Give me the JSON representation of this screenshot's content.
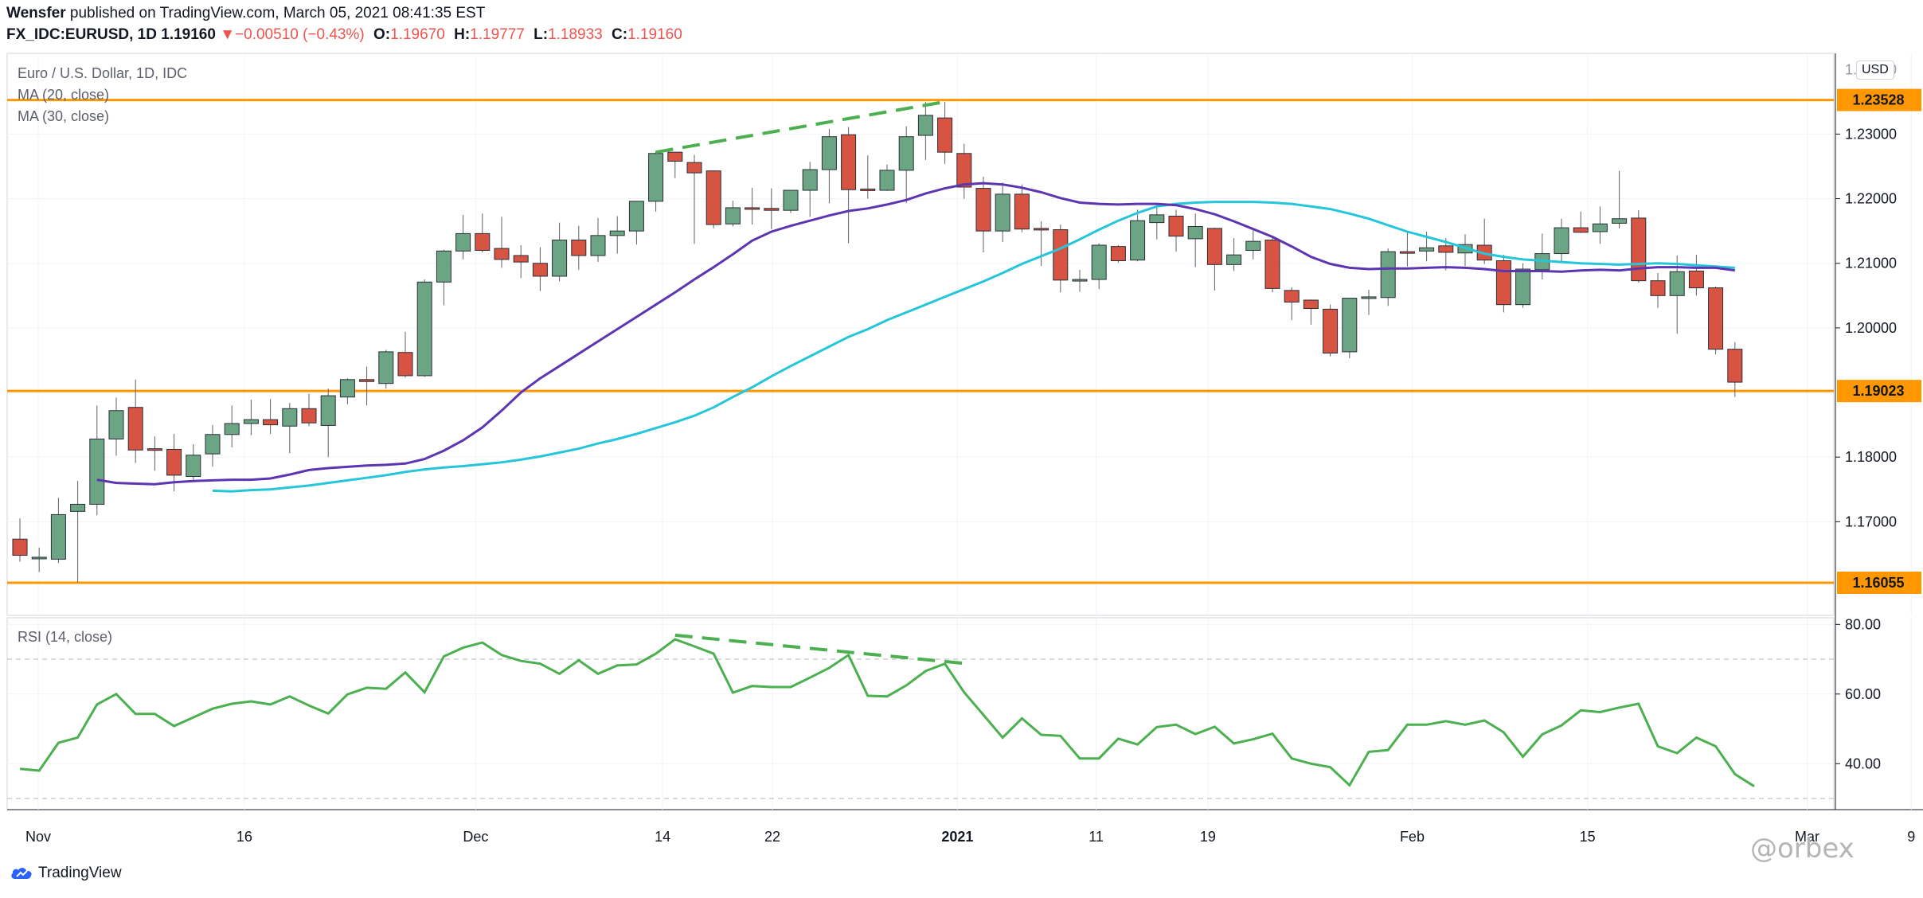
{
  "header": {
    "author": "Wensfer",
    "published_text": "published on TradingView.com, March 05, 2021 08:41:35 EST",
    "symbol": "FX_IDC:EURUSD, 1D",
    "last": "1.19160",
    "change_arrow": "▼",
    "change": "−0.00510 (−0.43%)",
    "o_label": "O:",
    "o_value": "1.19670",
    "h_label": "H:",
    "h_value": "1.19777",
    "l_label": "L:",
    "l_value": "1.18933",
    "c_label": "C:",
    "c_value": "1.19160"
  },
  "legend": {
    "title": "Euro / U.S. Dollar, 1D, IDC",
    "ma20": "MA (20, close)",
    "ma30": "MA (30, close)",
    "rsi": "RSI (14, close)"
  },
  "currency_badge": "USD",
  "footer": {
    "brand": "TradingView",
    "watermark": "@orbex"
  },
  "colors": {
    "up": "#6ba583",
    "down": "#d75442",
    "wick": "#5d606b",
    "ma20": "#5e35b1",
    "ma30": "#26c6da",
    "level": "#ff9800",
    "rsi": "#4caf50",
    "trend_dash": "#4caf50",
    "grid": "#f0f3fa",
    "text_red": "#ef5350"
  },
  "chart_data": [
    {
      "type": "candlestick",
      "title": "Euro / U.S. Dollar, 1D, IDC",
      "x_labels": [
        "Nov",
        "16",
        "Dec",
        "14",
        "22",
        "2021",
        "11",
        "19",
        "Feb",
        "15",
        "Mar",
        "9"
      ],
      "y_ticks": [
        "1.23000",
        "1.22000",
        "1.21000",
        "1.20000",
        "1.18000",
        "1.17000"
      ],
      "ylim": [
        1.1555,
        1.2425
      ],
      "levels": [
        {
          "value": 1.23528,
          "label": "1.23528"
        },
        {
          "value": 1.19023,
          "label": "1.19023"
        },
        {
          "value": 1.16055,
          "label": "1.16055"
        }
      ],
      "candles": [
        {
          "o": 1.1673,
          "h": 1.1705,
          "l": 1.1638,
          "c": 1.1648
        },
        {
          "o": 1.1643,
          "h": 1.166,
          "l": 1.1622,
          "c": 1.1645
        },
        {
          "o": 1.1642,
          "h": 1.1737,
          "l": 1.1636,
          "c": 1.1711
        },
        {
          "o": 1.1716,
          "h": 1.1763,
          "l": 1.1606,
          "c": 1.1727
        },
        {
          "o": 1.1727,
          "h": 1.188,
          "l": 1.171,
          "c": 1.1828
        },
        {
          "o": 1.1828,
          "h": 1.1892,
          "l": 1.1802,
          "c": 1.1872
        },
        {
          "o": 1.1877,
          "h": 1.192,
          "l": 1.1791,
          "c": 1.1811
        },
        {
          "o": 1.1813,
          "h": 1.1832,
          "l": 1.1779,
          "c": 1.1812
        },
        {
          "o": 1.1812,
          "h": 1.1836,
          "l": 1.1747,
          "c": 1.1772
        },
        {
          "o": 1.177,
          "h": 1.182,
          "l": 1.1762,
          "c": 1.1803
        },
        {
          "o": 1.1805,
          "h": 1.185,
          "l": 1.1785,
          "c": 1.1835
        },
        {
          "o": 1.1835,
          "h": 1.188,
          "l": 1.1815,
          "c": 1.1852
        },
        {
          "o": 1.1852,
          "h": 1.1889,
          "l": 1.1834,
          "c": 1.1858
        },
        {
          "o": 1.1858,
          "h": 1.189,
          "l": 1.1836,
          "c": 1.185
        },
        {
          "o": 1.1848,
          "h": 1.1884,
          "l": 1.1806,
          "c": 1.1875
        },
        {
          "o": 1.1875,
          "h": 1.1898,
          "l": 1.1848,
          "c": 1.1853
        },
        {
          "o": 1.1849,
          "h": 1.1906,
          "l": 1.18,
          "c": 1.1895
        },
        {
          "o": 1.1893,
          "h": 1.1922,
          "l": 1.1882,
          "c": 1.192
        },
        {
          "o": 1.192,
          "h": 1.194,
          "l": 1.188,
          "c": 1.1917
        },
        {
          "o": 1.1914,
          "h": 1.1966,
          "l": 1.1906,
          "c": 1.1963
        },
        {
          "o": 1.1962,
          "h": 1.1994,
          "l": 1.1923,
          "c": 1.1926
        },
        {
          "o": 1.1926,
          "h": 1.2075,
          "l": 1.1924,
          "c": 1.2071
        },
        {
          "o": 1.2071,
          "h": 1.2121,
          "l": 1.2035,
          "c": 1.2119
        },
        {
          "o": 1.2119,
          "h": 1.2175,
          "l": 1.2106,
          "c": 1.2146
        },
        {
          "o": 1.2146,
          "h": 1.2177,
          "l": 1.2117,
          "c": 1.212
        },
        {
          "o": 1.2123,
          "h": 1.2172,
          "l": 1.2093,
          "c": 1.2106
        },
        {
          "o": 1.2112,
          "h": 1.2128,
          "l": 1.2077,
          "c": 1.2102
        },
        {
          "o": 1.21,
          "h": 1.2125,
          "l": 1.2057,
          "c": 1.208
        },
        {
          "o": 1.208,
          "h": 1.2163,
          "l": 1.2072,
          "c": 1.2136
        },
        {
          "o": 1.2136,
          "h": 1.2158,
          "l": 1.209,
          "c": 1.2112
        },
        {
          "o": 1.2112,
          "h": 1.217,
          "l": 1.2102,
          "c": 1.2143
        },
        {
          "o": 1.2143,
          "h": 1.2173,
          "l": 1.2115,
          "c": 1.215
        },
        {
          "o": 1.215,
          "h": 1.2196,
          "l": 1.2129,
          "c": 1.2196
        },
        {
          "o": 1.2196,
          "h": 1.2273,
          "l": 1.218,
          "c": 1.227
        },
        {
          "o": 1.2272,
          "h": 1.2268,
          "l": 1.2232,
          "c": 1.2258
        },
        {
          "o": 1.2256,
          "h": 1.2268,
          "l": 1.213,
          "c": 1.224
        },
        {
          "o": 1.2243,
          "h": 1.2244,
          "l": 1.2154,
          "c": 1.216
        },
        {
          "o": 1.2161,
          "h": 1.2197,
          "l": 1.2157,
          "c": 1.2186
        },
        {
          "o": 1.2186,
          "h": 1.2217,
          "l": 1.216,
          "c": 1.2184
        },
        {
          "o": 1.2185,
          "h": 1.2216,
          "l": 1.2153,
          "c": 1.2182
        },
        {
          "o": 1.2182,
          "h": 1.2213,
          "l": 1.2178,
          "c": 1.2213
        },
        {
          "o": 1.2213,
          "h": 1.2257,
          "l": 1.2172,
          "c": 1.2245
        },
        {
          "o": 1.2245,
          "h": 1.2308,
          "l": 1.2193,
          "c": 1.2296
        },
        {
          "o": 1.2299,
          "h": 1.2311,
          "l": 1.2131,
          "c": 1.2214
        },
        {
          "o": 1.2215,
          "h": 1.2267,
          "l": 1.22,
          "c": 1.2213
        },
        {
          "o": 1.2213,
          "h": 1.2253,
          "l": 1.2212,
          "c": 1.2244
        },
        {
          "o": 1.2244,
          "h": 1.2312,
          "l": 1.2193,
          "c": 1.2296
        },
        {
          "o": 1.2298,
          "h": 1.235,
          "l": 1.226,
          "c": 1.2329
        },
        {
          "o": 1.2325,
          "h": 1.235,
          "l": 1.2254,
          "c": 1.2272
        },
        {
          "o": 1.227,
          "h": 1.2285,
          "l": 1.22,
          "c": 1.2218
        },
        {
          "o": 1.2216,
          "h": 1.2234,
          "l": 1.2117,
          "c": 1.215
        },
        {
          "o": 1.215,
          "h": 1.2225,
          "l": 1.2133,
          "c": 1.2207
        },
        {
          "o": 1.2207,
          "h": 1.2222,
          "l": 1.2148,
          "c": 1.2153
        },
        {
          "o": 1.2154,
          "h": 1.2165,
          "l": 1.2096,
          "c": 1.2152
        },
        {
          "o": 1.2152,
          "h": 1.216,
          "l": 1.2055,
          "c": 1.2074
        },
        {
          "o": 1.2074,
          "h": 1.209,
          "l": 1.2056,
          "c": 1.2075
        },
        {
          "o": 1.2075,
          "h": 1.2131,
          "l": 1.206,
          "c": 1.2128
        },
        {
          "o": 1.2126,
          "h": 1.2128,
          "l": 1.2101,
          "c": 1.2104
        },
        {
          "o": 1.2105,
          "h": 1.2183,
          "l": 1.2103,
          "c": 1.2166
        },
        {
          "o": 1.2163,
          "h": 1.219,
          "l": 1.2137,
          "c": 1.2175
        },
        {
          "o": 1.2173,
          "h": 1.2183,
          "l": 1.2118,
          "c": 1.2142
        },
        {
          "o": 1.2138,
          "h": 1.2177,
          "l": 1.2094,
          "c": 1.2157
        },
        {
          "o": 1.2154,
          "h": 1.2155,
          "l": 1.2058,
          "c": 1.2098
        },
        {
          "o": 1.2098,
          "h": 1.2139,
          "l": 1.2088,
          "c": 1.2113
        },
        {
          "o": 1.212,
          "h": 1.2151,
          "l": 1.2106,
          "c": 1.2134
        },
        {
          "o": 1.2136,
          "h": 1.2141,
          "l": 1.2055,
          "c": 1.2061
        },
        {
          "o": 1.2058,
          "h": 1.2063,
          "l": 1.2012,
          "c": 1.204
        },
        {
          "o": 1.2043,
          "h": 1.2044,
          "l": 1.2005,
          "c": 1.203
        },
        {
          "o": 1.2029,
          "h": 1.2036,
          "l": 1.1956,
          "c": 1.1961
        },
        {
          "o": 1.1963,
          "h": 1.2046,
          "l": 1.1953,
          "c": 1.2046
        },
        {
          "o": 1.2046,
          "h": 1.2059,
          "l": 1.202,
          "c": 1.2048
        },
        {
          "o": 1.2047,
          "h": 1.2123,
          "l": 1.2034,
          "c": 1.2118
        },
        {
          "o": 1.2118,
          "h": 1.215,
          "l": 1.2095,
          "c": 1.2117
        },
        {
          "o": 1.2119,
          "h": 1.2149,
          "l": 1.2103,
          "c": 1.2124
        },
        {
          "o": 1.2127,
          "h": 1.2139,
          "l": 1.2089,
          "c": 1.2117
        },
        {
          "o": 1.2116,
          "h": 1.2145,
          "l": 1.2096,
          "c": 1.2129
        },
        {
          "o": 1.2128,
          "h": 1.2169,
          "l": 1.2099,
          "c": 1.2105
        },
        {
          "o": 1.2104,
          "h": 1.2113,
          "l": 1.2024,
          "c": 1.2036
        },
        {
          "o": 1.2036,
          "h": 1.21,
          "l": 1.2031,
          "c": 1.2091
        },
        {
          "o": 1.209,
          "h": 1.2146,
          "l": 1.2075,
          "c": 1.2115
        },
        {
          "o": 1.2115,
          "h": 1.2169,
          "l": 1.2101,
          "c": 1.2155
        },
        {
          "o": 1.2155,
          "h": 1.218,
          "l": 1.2147,
          "c": 1.2148
        },
        {
          "o": 1.2149,
          "h": 1.2188,
          "l": 1.213,
          "c": 1.2161
        },
        {
          "o": 1.2162,
          "h": 1.2243,
          "l": 1.2154,
          "c": 1.2169
        },
        {
          "o": 1.217,
          "h": 1.2182,
          "l": 1.207,
          "c": 1.2073
        },
        {
          "o": 1.2073,
          "h": 1.2085,
          "l": 1.2031,
          "c": 1.205
        },
        {
          "o": 1.205,
          "h": 1.2112,
          "l": 1.1991,
          "c": 1.2087
        },
        {
          "o": 1.2088,
          "h": 1.2113,
          "l": 1.205,
          "c": 1.2062
        },
        {
          "o": 1.2062,
          "h": 1.2064,
          "l": 1.1959,
          "c": 1.1967
        },
        {
          "o": 1.1967,
          "h": 1.1978,
          "l": 1.1893,
          "c": 1.1916
        }
      ],
      "ma20": [
        1.1765,
        1.176,
        1.1759,
        1.1758,
        1.1761,
        1.1763,
        1.1764,
        1.1765,
        1.1765,
        1.1767,
        1.1773,
        1.178,
        1.1783,
        1.1785,
        1.1787,
        1.1788,
        1.179,
        1.1797,
        1.181,
        1.1826,
        1.1846,
        1.1872,
        1.19,
        1.1922,
        1.1941,
        1.196,
        1.1979,
        1.1998,
        1.2017,
        1.2036,
        1.2055,
        1.2075,
        1.2094,
        1.2114,
        1.2135,
        1.2149,
        1.2158,
        1.2166,
        1.2174,
        1.2181,
        1.2185,
        1.2191,
        1.2198,
        1.2208,
        1.2216,
        1.2222,
        1.2224,
        1.2222,
        1.2217,
        1.221,
        1.2201,
        1.2194,
        1.2192,
        1.2191,
        1.2192,
        1.2192,
        1.219,
        1.2184,
        1.2176,
        1.2165,
        1.2153,
        1.2141,
        1.2126,
        1.211,
        1.2099,
        1.2093,
        1.2091,
        1.2092,
        1.2092,
        1.2093,
        1.2094,
        1.2093,
        1.2091,
        1.2088,
        1.2088,
        1.2088,
        1.2087,
        1.2089,
        1.209,
        1.2089,
        1.2092,
        1.2094,
        1.2094,
        1.2093,
        1.2093,
        1.2089
      ],
      "ma30": [
        1.1748,
        1.1747,
        1.1749,
        1.175,
        1.1753,
        1.1756,
        1.176,
        1.1764,
        1.1768,
        1.1772,
        1.1777,
        1.1781,
        1.1784,
        1.1786,
        1.1789,
        1.1792,
        1.1796,
        1.1801,
        1.1807,
        1.1813,
        1.1821,
        1.1828,
        1.1836,
        1.1845,
        1.1854,
        1.1864,
        1.1877,
        1.1893,
        1.1908,
        1.1925,
        1.1941,
        1.1956,
        1.1971,
        1.1986,
        1.1998,
        1.2012,
        1.2024,
        1.2036,
        1.2048,
        1.206,
        1.2072,
        1.2085,
        1.2099,
        1.2111,
        1.2123,
        1.2137,
        1.2152,
        1.2166,
        1.2178,
        1.2188,
        1.2192,
        1.2194,
        1.2195,
        1.2195,
        1.2195,
        1.2194,
        1.2192,
        1.2188,
        1.2184,
        1.2177,
        1.2169,
        1.2159,
        1.2149,
        1.2141,
        1.2133,
        1.2124,
        1.2115,
        1.211,
        1.2106,
        1.2104,
        1.2102,
        1.21,
        1.2099,
        1.2098,
        1.2099,
        1.21,
        1.2099,
        1.2097,
        1.2095,
        1.2093
      ],
      "trend_line": {
        "from": [
          33,
          1.2272
        ],
        "to": [
          48,
          1.235
        ]
      }
    },
    {
      "type": "line",
      "title": "RSI (14, close)",
      "y_ticks": [
        "80.00",
        "60.00",
        "40.00"
      ],
      "ylim": [
        26.8,
        81.9
      ],
      "bands": [
        70,
        30
      ],
      "values": [
        38.5,
        38,
        46,
        47.5,
        57,
        60,
        54.3,
        54.3,
        50.8,
        53.3,
        55.8,
        57.2,
        57.9,
        57,
        59.3,
        56.7,
        54.4,
        59.9,
        61.8,
        61.5,
        66.2,
        60.5,
        70.8,
        73.3,
        74.8,
        71.2,
        69.5,
        68.7,
        65.8,
        69.7,
        65.8,
        68.2,
        68.5,
        71.6,
        75.7,
        73.7,
        71.6,
        60.4,
        62.3,
        62.0,
        62.0,
        64.7,
        67.5,
        71.2,
        59.5,
        59.3,
        62.5,
        66.6,
        68.7,
        60.5,
        54.0,
        47.5,
        53.0,
        48.3,
        48.0,
        41.5,
        41.5,
        47.2,
        45.5,
        50.5,
        51.2,
        48.5,
        50.6,
        45.8,
        47.0,
        48.6,
        41.5,
        40.0,
        39.0,
        33.8,
        43.4,
        43.9,
        51.2,
        51.2,
        52.2,
        51.2,
        52.4,
        49.0,
        42.0,
        48.4,
        51.0,
        55.3,
        54.8,
        56.1,
        57.2,
        45.0,
        43.0,
        47.5,
        45.0,
        37.0,
        33.5
      ],
      "trend_line": {
        "from": [
          34,
          76.9
        ],
        "to": [
          49,
          68.8
        ]
      }
    }
  ],
  "price_axis": {
    "ticks": [
      "1.23000",
      "1.22000",
      "1.21000",
      "1.20000",
      "1.18000",
      "1.17000"
    ],
    "top_partial_tick": "1.24000",
    "level_labels": [
      "1.23528",
      "1.19023",
      "1.16055"
    ]
  }
}
